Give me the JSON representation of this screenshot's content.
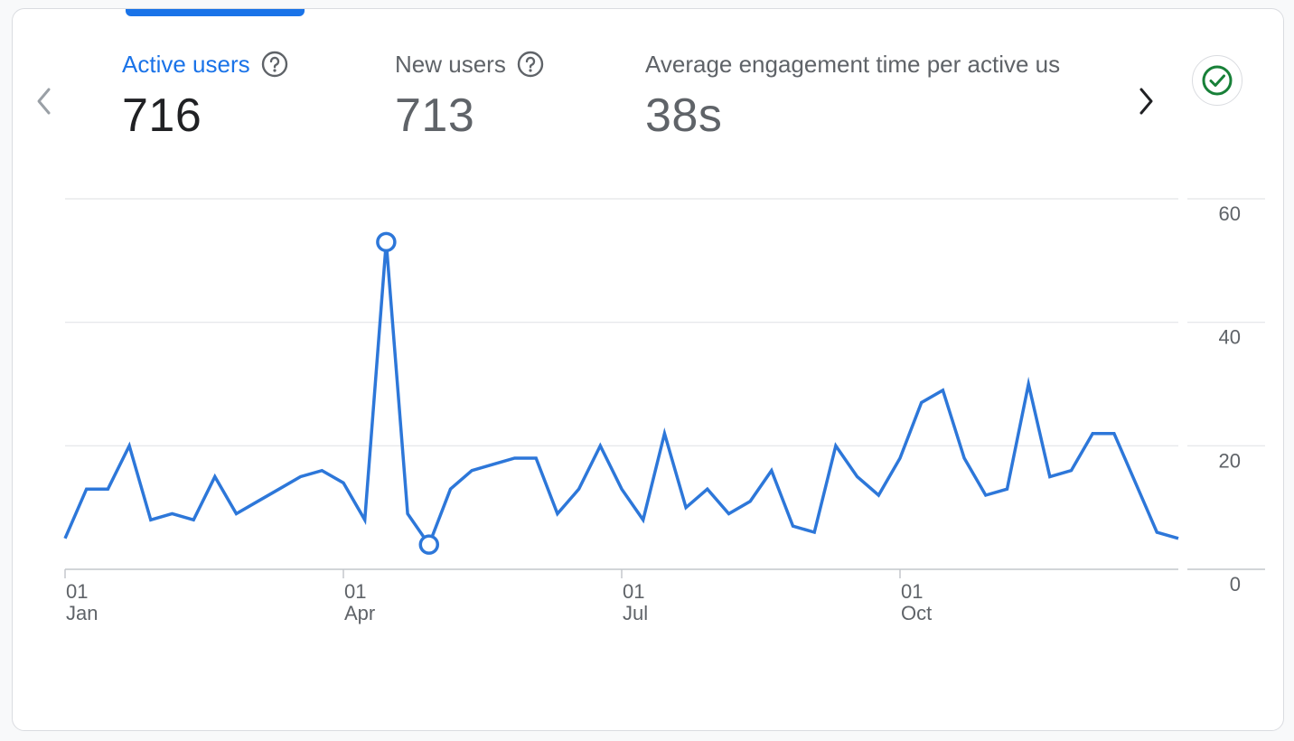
{
  "metrics": [
    {
      "label": "Active users",
      "value": "716",
      "selected": true
    },
    {
      "label": "New users",
      "value": "713",
      "selected": false
    },
    {
      "label": "Average engagement time per active us",
      "value": "38s",
      "selected": false
    }
  ],
  "icons": {
    "help": "help-circle-icon",
    "prev": "chevron-left-icon",
    "next": "chevron-right-icon",
    "status": "check-circle-icon"
  },
  "colors": {
    "accent": "#1a73e8",
    "line": "#2d77d9",
    "status": "#188038",
    "grid": "#e3e5e8"
  },
  "chart_data": {
    "type": "line",
    "x": [
      "Jan 01",
      "Jan 08",
      "Jan 15",
      "Jan 22",
      "Jan 29",
      "Feb 05",
      "Feb 12",
      "Feb 19",
      "Feb 26",
      "Mar 05",
      "Mar 12",
      "Mar 19",
      "Mar 26",
      "Apr 02",
      "Apr 09",
      "Apr 16",
      "Apr 23",
      "Apr 30",
      "May 07",
      "May 14",
      "May 21",
      "May 28",
      "Jun 04",
      "Jun 11",
      "Jun 18",
      "Jun 25",
      "Jul 02",
      "Jul 09",
      "Jul 16",
      "Jul 23",
      "Jul 30",
      "Aug 06",
      "Aug 13",
      "Aug 20",
      "Aug 27",
      "Sep 03",
      "Sep 10",
      "Sep 17",
      "Sep 24",
      "Oct 01",
      "Oct 08",
      "Oct 15",
      "Oct 22",
      "Oct 29",
      "Nov 05",
      "Nov 12",
      "Nov 19",
      "Nov 26",
      "Dec 03",
      "Dec 10",
      "Dec 17",
      "Dec 24",
      "Dec 31"
    ],
    "series": [
      {
        "values": [
          5,
          13,
          13,
          20,
          8,
          9,
          8,
          15,
          9,
          11,
          13,
          15,
          16,
          14,
          8,
          53,
          9,
          4,
          13,
          16,
          17,
          18,
          18,
          9,
          13,
          20,
          13,
          8,
          22,
          10,
          13,
          9,
          11,
          16,
          7,
          6,
          20,
          15,
          12,
          18,
          27,
          29,
          18,
          12,
          13,
          30,
          15,
          16,
          22,
          22,
          14,
          6,
          5
        ]
      }
    ],
    "highlight_points": [
      {
        "x": "Apr 16",
        "y": 53
      },
      {
        "x": "Apr 30",
        "y": 4
      }
    ],
    "x_ticks": [
      {
        "x": "Jan 01",
        "day": "01",
        "month": "Jan"
      },
      {
        "x": "Apr 02",
        "day": "01",
        "month": "Apr"
      },
      {
        "x": "Jul 02",
        "day": "01",
        "month": "Jul"
      },
      {
        "x": "Oct 01",
        "day": "01",
        "month": "Oct"
      }
    ],
    "y_ticks": [
      "60",
      "40",
      "20",
      "0"
    ],
    "ylim": [
      0,
      60
    ],
    "y_axis_side": "right",
    "grid": true
  }
}
